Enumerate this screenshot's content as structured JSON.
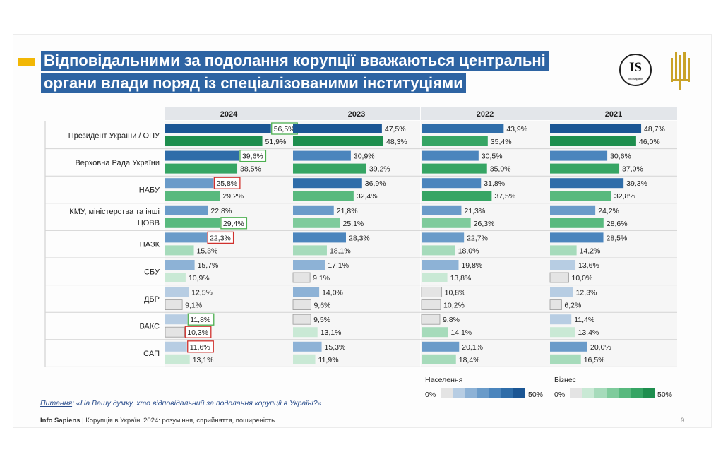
{
  "title": {
    "line1": "Відповідальними за подолання корупції вважаються центральні",
    "line2": "органи влади поряд із спеціалізованими інституціями"
  },
  "logos": {
    "is_text": "IS",
    "is_sub": "Info Sapiens"
  },
  "chart_data": {
    "type": "bar",
    "orientation": "horizontal",
    "panels": [
      "2024",
      "2023",
      "2022",
      "2021"
    ],
    "categories": [
      [
        "Президент України / ОПУ"
      ],
      [
        "Верховна Рада України"
      ],
      [
        "НАБУ"
      ],
      [
        "КМУ, міністерства та інші",
        "ЦОВВ"
      ],
      [
        "НАЗК"
      ],
      [
        "СБУ"
      ],
      [
        "ДБР"
      ],
      [
        "ВАКС"
      ],
      [
        "САП"
      ]
    ],
    "series": [
      {
        "name": "Населення",
        "values": {
          "2024": [
            56.5,
            39.6,
            25.8,
            22.8,
            22.3,
            15.7,
            12.5,
            11.8,
            11.6
          ],
          "2023": [
            47.5,
            30.9,
            36.9,
            21.8,
            28.3,
            17.1,
            14.0,
            9.5,
            15.3
          ],
          "2022": [
            43.9,
            30.5,
            31.8,
            21.3,
            22.7,
            19.8,
            10.8,
            9.8,
            20.1
          ],
          "2021": [
            48.7,
            30.6,
            39.3,
            24.2,
            28.5,
            13.6,
            12.3,
            11.4,
            20.0
          ]
        }
      },
      {
        "name": "Бізнес",
        "values": {
          "2024": [
            51.9,
            38.5,
            29.2,
            29.4,
            15.3,
            10.9,
            9.1,
            10.3,
            13.1
          ],
          "2023": [
            48.3,
            39.2,
            32.4,
            25.1,
            18.1,
            9.1,
            9.6,
            13.1,
            11.9
          ],
          "2022": [
            35.4,
            35.0,
            37.5,
            26.3,
            18.0,
            13.8,
            10.2,
            14.1,
            18.4
          ],
          "2021": [
            46.0,
            37.0,
            32.8,
            28.6,
            14.2,
            10.0,
            6.2,
            13.4,
            16.5
          ]
        }
      }
    ],
    "highlighted_2024": [
      {
        "category": 0,
        "series": "Населення",
        "frame": "green"
      },
      {
        "category": 1,
        "series": "Населення",
        "frame": "green"
      },
      {
        "category": 2,
        "series": "Населення",
        "frame": "red"
      },
      {
        "category": 3,
        "series": "Бізнес",
        "frame": "green"
      },
      {
        "category": 4,
        "series": "Населення",
        "frame": "red"
      },
      {
        "category": 7,
        "series": "Населення",
        "frame": "green"
      },
      {
        "category": 7,
        "series": "Бізнес",
        "frame": "red"
      },
      {
        "category": 8,
        "series": "Населення",
        "frame": "red"
      }
    ],
    "value_format": "comma-decimal-percent",
    "xlim": [
      0,
      60
    ],
    "legend": {
      "placement": "bottom-right",
      "scales": [
        {
          "name": "Населення",
          "min_label": "0%",
          "max_label": "50%",
          "colors": [
            "#e4e4e4",
            "#b7cde3",
            "#8db2d6",
            "#6a9bc9",
            "#4b85bd",
            "#2f6da9",
            "#1b5694"
          ]
        },
        {
          "name": "Бізнес",
          "min_label": "0%",
          "max_label": "50%",
          "colors": [
            "#e4e4e4",
            "#c9e9d5",
            "#a6dbbb",
            "#7fcb9c",
            "#58b97e",
            "#36a564",
            "#1e8e4e"
          ]
        }
      ]
    },
    "frame_colors": {
      "green": "#4caf50",
      "red": "#d0312d"
    }
  },
  "question": {
    "label": "Питання",
    "text": ": «На Вашу думку, хто відповідальний за подолання корупції в Україні?»"
  },
  "footer": {
    "org": "Info Sapiens",
    "text": " | Корупція в Україні 2024: розуміння, сприйняття, поширеність",
    "page": "9"
  }
}
